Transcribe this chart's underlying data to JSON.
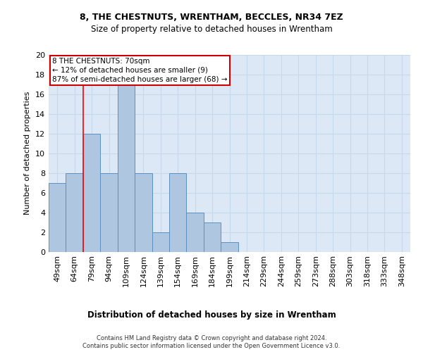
{
  "title": "8, THE CHESTNUTS, WRENTHAM, BECCLES, NR34 7EZ",
  "subtitle": "Size of property relative to detached houses in Wrentham",
  "xlabel_bottom": "Distribution of detached houses by size in Wrentham",
  "ylabel": "Number of detached properties",
  "footer_line1": "Contains HM Land Registry data © Crown copyright and database right 2024.",
  "footer_line2": "Contains public sector information licensed under the Open Government Licence v3.0.",
  "categories": [
    "49sqm",
    "64sqm",
    "79sqm",
    "94sqm",
    "109sqm",
    "124sqm",
    "139sqm",
    "154sqm",
    "169sqm",
    "184sqm",
    "199sqm",
    "214sqm",
    "229sqm",
    "244sqm",
    "259sqm",
    "273sqm",
    "288sqm",
    "303sqm",
    "318sqm",
    "333sqm",
    "348sqm"
  ],
  "values": [
    7,
    8,
    12,
    8,
    17,
    8,
    2,
    8,
    4,
    3,
    1,
    0,
    0,
    0,
    0,
    0,
    0,
    0,
    0,
    0,
    0
  ],
  "bar_color": "#aec6e0",
  "bar_edge_color": "#5a90c0",
  "grid_color": "#c8d8ec",
  "background_color": "#dce8f5",
  "annotation_text": "8 THE CHESTNUTS: 70sqm\n← 12% of detached houses are smaller (9)\n87% of semi-detached houses are larger (68) →",
  "annotation_box_color": "#cc0000",
  "red_line_x": 1.5,
  "ylim": [
    0,
    20
  ],
  "yticks": [
    0,
    2,
    4,
    6,
    8,
    10,
    12,
    14,
    16,
    18,
    20
  ],
  "title_fontsize": 9,
  "subtitle_fontsize": 8.5,
  "ylabel_fontsize": 8,
  "xtick_fontsize": 6.5,
  "ytick_fontsize": 8,
  "annotation_fontsize": 7.5,
  "footer_fontsize": 6,
  "xlabel_bottom_fontsize": 8.5
}
